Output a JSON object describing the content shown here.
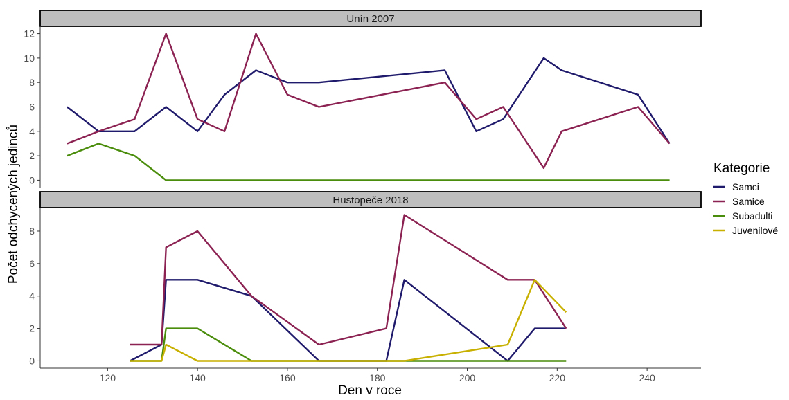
{
  "chart_data": {
    "type": "line",
    "xlabel": "Den v roce",
    "ylabel": "Počet odchycených jedinců",
    "xlim": [
      105,
      252
    ],
    "x_ticks": [
      120,
      140,
      160,
      180,
      200,
      220,
      240
    ],
    "legend": {
      "title": "Kategorie",
      "placement": "right",
      "entries": [
        {
          "name": "Samci",
          "color": "#1f1a6b"
        },
        {
          "name": "Samice",
          "color": "#8b2252"
        },
        {
          "name": "Subadulti",
          "color": "#4a8c0b"
        },
        {
          "name": "Juvenilové",
          "color": "#c8b000"
        }
      ]
    },
    "panels": [
      {
        "title": "Unín 2007",
        "ylim": [
          -0.6,
          12.6
        ],
        "y_ticks": [
          0,
          2,
          4,
          6,
          8,
          10,
          12
        ],
        "series": [
          {
            "name": "Samci",
            "color": "#1f1a6b",
            "x": [
              111,
              118,
              126,
              133,
              140,
              146,
              153,
              160,
              167,
              195,
              202,
              208,
              217,
              221,
              238,
              245
            ],
            "y": [
              6,
              4,
              4,
              6,
              4,
              7,
              9,
              8,
              8,
              9,
              4,
              5,
              10,
              9,
              7,
              3
            ]
          },
          {
            "name": "Samice",
            "color": "#8b2252",
            "x": [
              111,
              118,
              126,
              133,
              140,
              146,
              153,
              160,
              167,
              195,
              202,
              208,
              217,
              221,
              238,
              245
            ],
            "y": [
              3,
              4,
              5,
              12,
              5,
              4,
              12,
              7,
              6,
              8,
              5,
              6,
              1,
              4,
              6,
              3
            ]
          },
          {
            "name": "Subadulti",
            "color": "#4a8c0b",
            "x": [
              111,
              118,
              126,
              133,
              140,
              146,
              153,
              160,
              167,
              195,
              202,
              208,
              217,
              221,
              238,
              245
            ],
            "y": [
              2,
              3,
              2,
              0,
              0,
              0,
              0,
              0,
              0,
              0,
              0,
              0,
              0,
              0,
              0,
              0
            ]
          }
        ]
      },
      {
        "title": "Hustopeče 2018",
        "ylim": [
          -0.45,
          9.45
        ],
        "y_ticks": [
          0,
          2,
          4,
          6,
          8
        ],
        "series": [
          {
            "name": "Samci",
            "color": "#1f1a6b",
            "x": [
              125,
              132,
              133,
              140,
              152,
              167,
              182,
              186,
              209,
              215,
              222
            ],
            "y": [
              0,
              1,
              5,
              5,
              4,
              0,
              0,
              5,
              0,
              2,
              2
            ]
          },
          {
            "name": "Samice",
            "color": "#8b2252",
            "x": [
              125,
              132,
              133,
              140,
              152,
              167,
              182,
              186,
              209,
              215,
              222
            ],
            "y": [
              1,
              1,
              7,
              8,
              4,
              1,
              2,
              9,
              5,
              5,
              2
            ]
          },
          {
            "name": "Subadulti",
            "color": "#4a8c0b",
            "x": [
              125,
              132,
              133,
              140,
              152,
              167,
              182,
              186,
              209,
              215,
              222
            ],
            "y": [
              0,
              0,
              2,
              2,
              0,
              0,
              0,
              0,
              0,
              0,
              0
            ]
          },
          {
            "name": "Juvenilové",
            "color": "#c8b000",
            "x": [
              125,
              132,
              133,
              140,
              152,
              167,
              182,
              186,
              209,
              215,
              222
            ],
            "y": [
              0,
              0,
              1,
              0,
              0,
              0,
              0,
              0,
              1,
              5,
              3
            ]
          }
        ]
      }
    ]
  }
}
